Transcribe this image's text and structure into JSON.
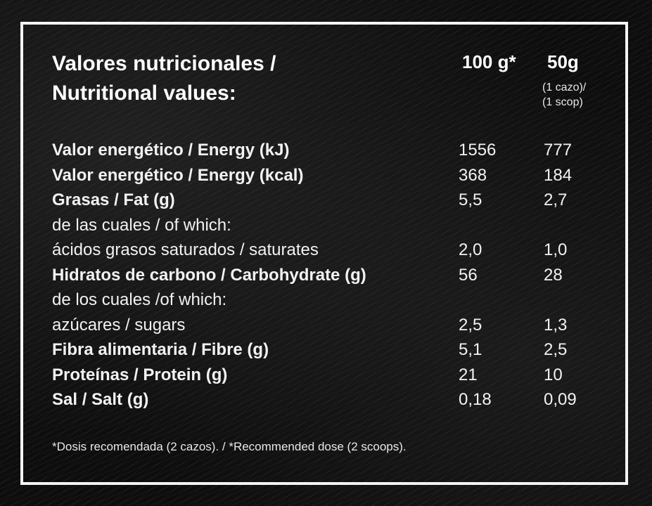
{
  "header": {
    "title_line1": "Valores nutricionales /",
    "title_line2": "Nutritional values:",
    "col_100": "100 g*",
    "col_50": "50g",
    "col_50_sub1": "(1 cazo)/",
    "col_50_sub2": "(1 scop)"
  },
  "rows": [
    {
      "label": "Valor energético / Energy (kJ)",
      "v100": "1556",
      "v50": "777",
      "bold": true
    },
    {
      "label": "Valor energético / Energy (kcal)",
      "v100": "368",
      "v50": "184",
      "bold": true
    },
    {
      "label": "Grasas / Fat (g)",
      "v100": "5,5",
      "v50": "2,7",
      "bold": true
    },
    {
      "label": "de las cuales / of which:",
      "v100": "",
      "v50": "",
      "bold": false
    },
    {
      "label": "ácidos grasos saturados / saturates",
      "v100": "2,0",
      "v50": "1,0",
      "bold": false
    },
    {
      "label": "Hidratos de carbono / Carbohydrate (g)",
      "v100": "56",
      "v50": "28",
      "bold": true
    },
    {
      "label": "de los cuales /of which:",
      "v100": "",
      "v50": "",
      "bold": false
    },
    {
      "label": "azúcares /  sugars",
      "v100": "2,5",
      "v50": "1,3",
      "bold": false
    },
    {
      "label": "Fibra alimentaria / Fibre (g)",
      "v100": "5,1",
      "v50": "2,5",
      "bold": true
    },
    {
      "label": "Proteínas / Protein (g)",
      "v100": "21",
      "v50": "10",
      "bold": true
    },
    {
      "label": "Sal / Salt  (g)",
      "v100": "0,18",
      "v50": "0,09",
      "bold": true
    }
  ],
  "footnote": "*Dosis recomendada (2 cazos). / *Recommended dose (2 scoops)."
}
